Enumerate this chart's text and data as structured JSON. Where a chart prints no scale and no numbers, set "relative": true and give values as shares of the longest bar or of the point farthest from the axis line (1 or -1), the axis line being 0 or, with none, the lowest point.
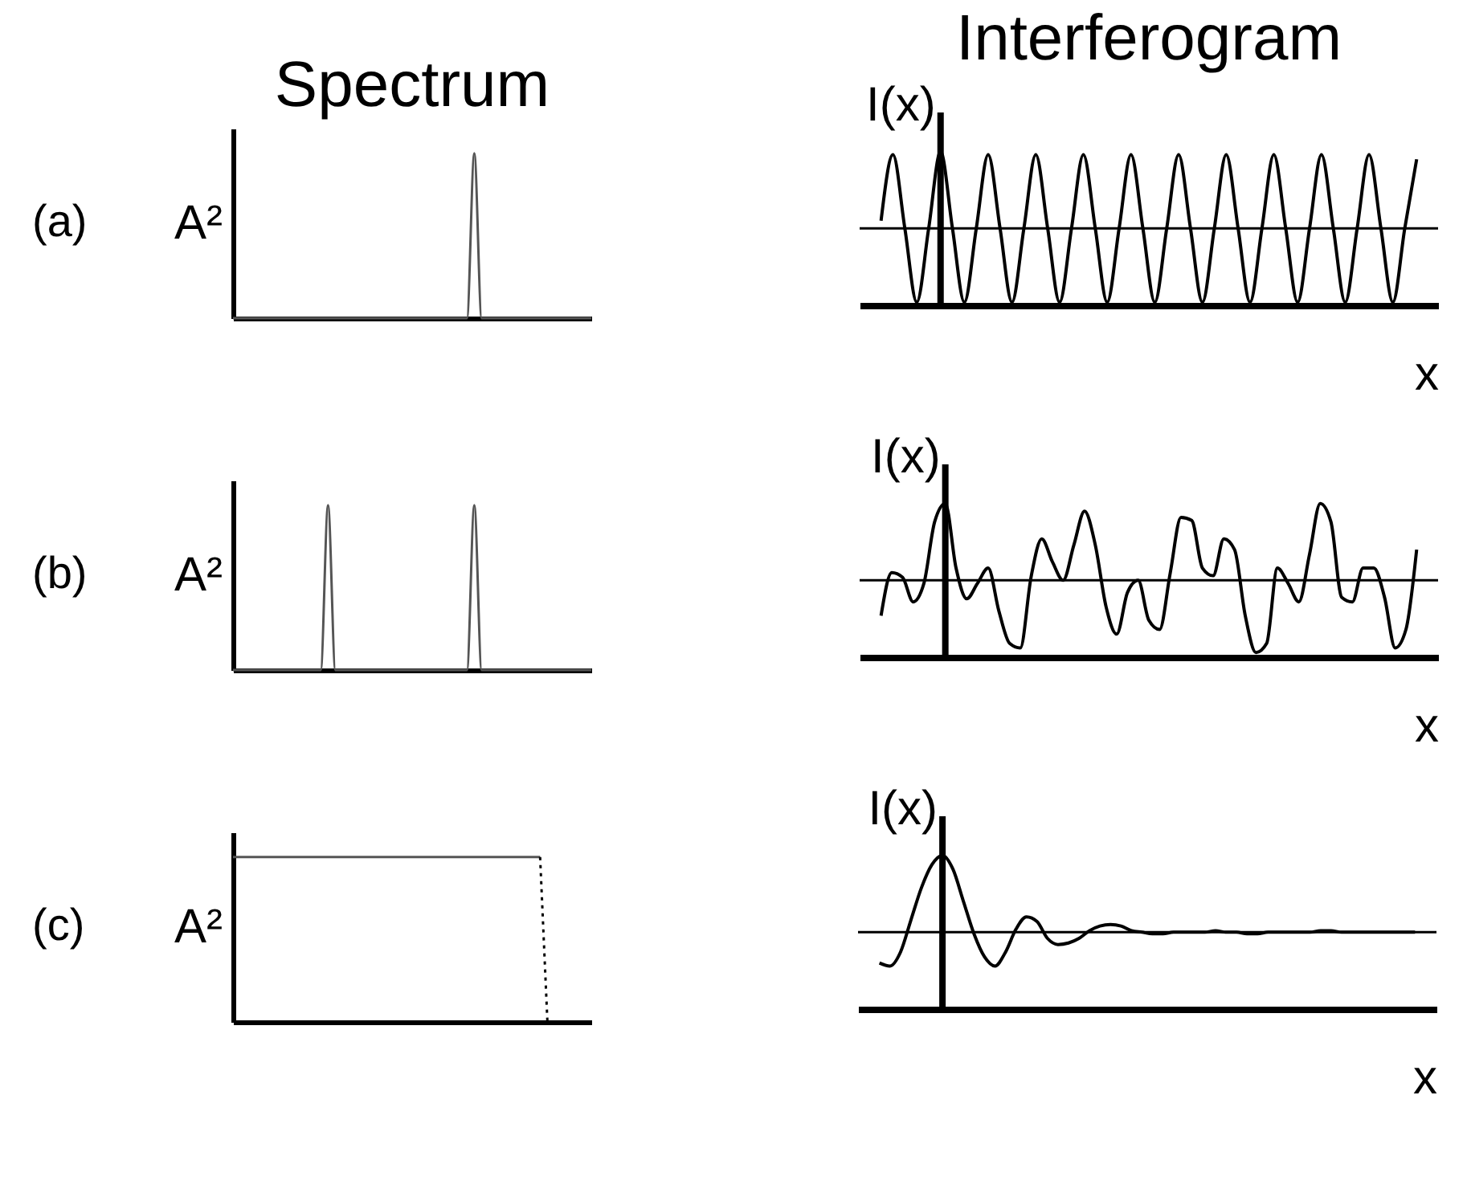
{
  "chart_data": [
    {
      "type": "line",
      "title": "Spectrum",
      "ylabel": "A²",
      "relative": true,
      "tick_labels": false,
      "annotations": [
        "(a)"
      ],
      "categories": [
        null,
        null,
        null,
        null,
        null,
        null,
        null,
        null,
        null,
        null,
        null,
        null,
        null,
        null,
        null,
        null,
        null,
        null,
        null,
        null,
        null,
        null,
        null,
        null,
        null,
        null,
        null,
        null,
        null,
        null,
        null,
        null,
        null,
        null,
        null,
        null,
        null,
        null,
        null,
        null,
        null,
        null,
        null,
        null,
        null,
        null,
        null,
        null,
        null,
        null
      ],
      "series": [
        {
          "color": "#555555",
          "values": [
            0,
            0,
            0,
            0,
            0,
            0,
            0,
            0,
            0,
            0,
            0,
            0,
            0,
            0,
            0,
            0,
            0,
            0,
            0,
            0,
            0,
            0,
            0,
            0,
            0,
            0,
            0,
            0,
            0,
            0,
            0,
            0,
            0,
            1,
            0,
            0,
            0,
            0,
            0,
            0,
            0,
            0,
            0,
            0,
            0,
            0,
            0,
            0,
            0,
            0
          ]
        }
      ]
    },
    {
      "type": "line",
      "title": "Interferogram",
      "ylabel": "I(x)",
      "xlabel": "x",
      "relative": true,
      "tick_labels": false,
      "ref_lines": [
        {
          "axis": "y",
          "value": 0.5
        }
      ],
      "categories": [
        null,
        null,
        null,
        null,
        null,
        null,
        null,
        null,
        null,
        null,
        null,
        null,
        null,
        null,
        null,
        null,
        null,
        null,
        null,
        null,
        null,
        null,
        null,
        null,
        null,
        null,
        null,
        null,
        null,
        null,
        null,
        null,
        null,
        null,
        null,
        null,
        null,
        null,
        null,
        null,
        null,
        null,
        null,
        null,
        null,
        null
      ],
      "series": [
        {
          "color": "#000000",
          "values": [
            0.55,
            0.98,
            0.5,
            0.02,
            0.5,
            1.0,
            0.5,
            0.02,
            0.5,
            0.98,
            0.5,
            0.02,
            0.5,
            0.98,
            0.5,
            0.02,
            0.5,
            0.98,
            0.5,
            0.02,
            0.5,
            0.98,
            0.5,
            0.02,
            0.5,
            0.98,
            0.5,
            0.02,
            0.5,
            0.98,
            0.5,
            0.02,
            0.5,
            0.98,
            0.5,
            0.02,
            0.5,
            0.98,
            0.5,
            0.02,
            0.5,
            0.98,
            0.5,
            0.02,
            0.5,
            0.95
          ]
        }
      ]
    },
    {
      "type": "line",
      "ylabel": "A²",
      "relative": true,
      "tick_labels": false,
      "annotations": [
        "(b)"
      ],
      "categories": [
        null,
        null,
        null,
        null,
        null,
        null,
        null,
        null,
        null,
        null,
        null,
        null,
        null,
        null,
        null,
        null,
        null,
        null,
        null,
        null,
        null,
        null,
        null,
        null,
        null,
        null,
        null,
        null,
        null,
        null,
        null,
        null,
        null,
        null,
        null,
        null,
        null,
        null,
        null,
        null,
        null,
        null,
        null,
        null,
        null,
        null,
        null,
        null,
        null,
        null
      ],
      "series": [
        {
          "color": "#555555",
          "values": [
            0,
            0,
            0,
            0,
            0,
            0,
            0,
            0,
            0,
            0,
            0,
            0,
            0,
            1,
            0,
            0,
            0,
            0,
            0,
            0,
            0,
            0,
            0,
            0,
            0,
            0,
            0,
            0,
            0,
            0,
            0,
            0,
            0,
            1,
            0,
            0,
            0,
            0,
            0,
            0,
            0,
            0,
            0,
            0,
            0,
            0,
            0,
            0,
            0,
            0
          ]
        }
      ]
    },
    {
      "type": "line",
      "ylabel": "I(x)",
      "xlabel": "x",
      "relative": true,
      "tick_labels": false,
      "ref_lines": [
        {
          "axis": "y",
          "value": 0.5
        }
      ],
      "categories": [
        null,
        null,
        null,
        null,
        null,
        null,
        null,
        null,
        null,
        null,
        null,
        null,
        null,
        null,
        null,
        null,
        null,
        null,
        null,
        null,
        null,
        null,
        null,
        null,
        null,
        null,
        null,
        null,
        null,
        null,
        null,
        null,
        null,
        null,
        null,
        null,
        null,
        null,
        null,
        null,
        null,
        null,
        null,
        null,
        null,
        null,
        null,
        null,
        null,
        null,
        null
      ],
      "series": [
        {
          "color": "#000000",
          "values": [
            0.27,
            0.55,
            0.52,
            0.36,
            0.48,
            0.88,
            1.0,
            0.58,
            0.38,
            0.48,
            0.58,
            0.3,
            0.09,
            0.06,
            0.52,
            0.77,
            0.62,
            0.5,
            0.73,
            0.95,
            0.73,
            0.33,
            0.15,
            0.42,
            0.5,
            0.24,
            0.18,
            0.55,
            0.91,
            0.89,
            0.58,
            0.53,
            0.77,
            0.7,
            0.27,
            0.03,
            0.09,
            0.58,
            0.48,
            0.36,
            0.67,
            1.0,
            0.88,
            0.39,
            0.36,
            0.58,
            0.58,
            0.39,
            0.06,
            0.18,
            0.7
          ]
        }
      ]
    },
    {
      "type": "line",
      "ylabel": "A²",
      "relative": true,
      "tick_labels": false,
      "annotations": [
        "(c)"
      ],
      "categories": [
        null,
        null,
        null,
        null,
        null,
        null,
        null,
        null,
        null,
        null,
        null,
        null,
        null,
        null,
        null,
        null,
        null,
        null,
        null,
        null,
        null,
        null,
        null,
        null,
        null,
        null,
        null,
        null,
        null,
        null,
        null,
        null,
        null,
        null,
        null,
        null,
        null,
        null,
        null,
        null,
        null,
        null,
        null,
        null,
        null,
        null,
        null,
        null,
        null,
        null
      ],
      "series": [
        {
          "color": "#555555",
          "line_style": "solid",
          "values": [
            1,
            1,
            1,
            1,
            1,
            1,
            1,
            1,
            1,
            1,
            1,
            1,
            1,
            1,
            1,
            1,
            1,
            1,
            1,
            1,
            1,
            1,
            1,
            1,
            1,
            1,
            1,
            1,
            1,
            1,
            1,
            1,
            1,
            1,
            1,
            1,
            1,
            1,
            1,
            1,
            1,
            1,
            1,
            null,
            null,
            null,
            null,
            null,
            null,
            null
          ]
        },
        {
          "color": "#000000",
          "line_style": "dotted",
          "values": [
            null,
            null,
            null,
            null,
            null,
            null,
            null,
            null,
            null,
            null,
            null,
            null,
            null,
            null,
            null,
            null,
            null,
            null,
            null,
            null,
            null,
            null,
            null,
            null,
            null,
            null,
            null,
            null,
            null,
            null,
            null,
            null,
            null,
            null,
            null,
            null,
            null,
            null,
            null,
            null,
            null,
            null,
            1,
            0,
            null,
            null,
            null,
            null,
            null,
            null
          ]
        }
      ]
    },
    {
      "type": "line",
      "ylabel": "I(x)",
      "xlabel": "x",
      "relative": true,
      "tick_labels": false,
      "ref_lines": [
        {
          "axis": "y",
          "value": 0.5
        }
      ],
      "categories": [
        null,
        null,
        null,
        null,
        null,
        null,
        null,
        null,
        null,
        null,
        null,
        null,
        null,
        null,
        null,
        null,
        null,
        null,
        null,
        null,
        null,
        null,
        null,
        null,
        null,
        null,
        null,
        null,
        null,
        null,
        null,
        null,
        null,
        null,
        null,
        null,
        null,
        null,
        null,
        null,
        null,
        null,
        null,
        null,
        null,
        null,
        null,
        null,
        null,
        null,
        null,
        null
      ],
      "series": [
        {
          "color": "#000000",
          "values": [
            0.3,
            0.28,
            0.37,
            0.58,
            0.79,
            0.94,
            1.0,
            0.91,
            0.7,
            0.49,
            0.34,
            0.28,
            0.37,
            0.52,
            0.6,
            0.57,
            0.46,
            0.42,
            0.43,
            0.46,
            0.51,
            0.54,
            0.55,
            0.54,
            0.51,
            0.5,
            0.49,
            0.49,
            0.5,
            0.5,
            0.5,
            0.5,
            0.51,
            0.5,
            0.5,
            0.49,
            0.49,
            0.5,
            0.5,
            0.5,
            0.5,
            0.5,
            0.51,
            0.51,
            0.5,
            0.5,
            0.5,
            0.5,
            0.5,
            0.5,
            0.5,
            0.5
          ]
        }
      ]
    }
  ]
}
